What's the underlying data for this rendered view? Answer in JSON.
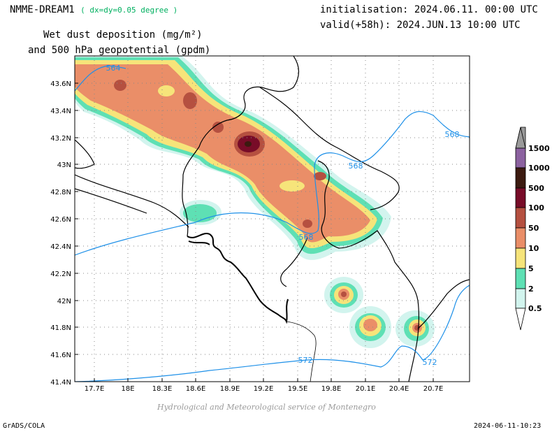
{
  "header": {
    "model": "NMME-DREAM1",
    "resolution": "( dx=dy=0.05 degree )",
    "title_line1": "Wet dust deposition (mg/m²)",
    "title_line2": "and 500 hPa geopotential (gpdm)",
    "init": "initialisation: 2024.06.11. 00:00 UTC",
    "valid": "valid(+58h): 2024.JUN.13 10:00 UTC"
  },
  "axes": {
    "lon_labels": [
      "17.7E",
      "18E",
      "18.3E",
      "18.6E",
      "18.9E",
      "19.2E",
      "19.5E",
      "19.8E",
      "20.1E",
      "20.4E",
      "20.7E"
    ],
    "lat_labels": [
      "43.6N",
      "43.4N",
      "43.2N",
      "43N",
      "42.8N",
      "42.6N",
      "42.4N",
      "42.2N",
      "42N",
      "41.8N",
      "41.6N",
      "41.4N"
    ]
  },
  "contours": {
    "labels": [
      "564",
      "568",
      "568",
      "568",
      "572",
      "572"
    ],
    "color": "#1e90e8"
  },
  "legend": {
    "levels": [
      "0.5",
      "2",
      "5",
      "10",
      "50",
      "100",
      "500",
      "1000",
      "1500"
    ],
    "colors": [
      "#d2f4ee",
      "#5ee0b4",
      "#f6e47a",
      "#ea8e68",
      "#b55040",
      "#780c28",
      "#3c1a10",
      "#8c62a0",
      "#9a9a9a"
    ]
  },
  "credit": "Hydrological and Meteorological service of Montenegro",
  "footer": {
    "left": "GrADS/COLA",
    "right": "2024-06-11-10:23"
  }
}
